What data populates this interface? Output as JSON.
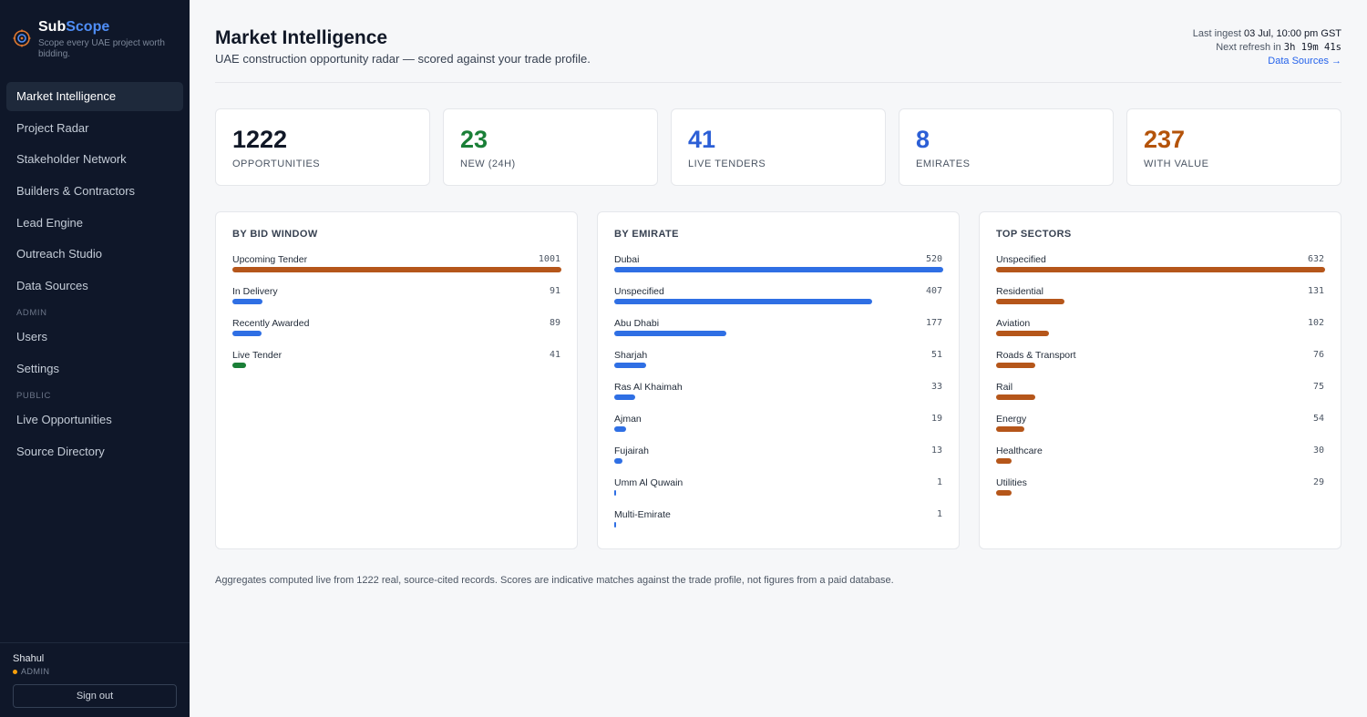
{
  "brand": {
    "name_prefix": "Sub",
    "name_suffix": "Scope",
    "tagline": "Scope every UAE project worth bidding."
  },
  "nav": {
    "main": [
      {
        "label": "Market Intelligence",
        "active": true
      },
      {
        "label": "Project Radar"
      },
      {
        "label": "Stakeholder Network"
      },
      {
        "label": "Builders & Contractors"
      },
      {
        "label": "Lead Engine"
      },
      {
        "label": "Outreach Studio"
      },
      {
        "label": "Data Sources"
      }
    ],
    "admin_heading": "ADMIN",
    "admin": [
      {
        "label": "Users"
      },
      {
        "label": "Settings"
      }
    ],
    "public_heading": "PUBLIC",
    "public": [
      {
        "label": "Live Opportunities"
      },
      {
        "label": "Source Directory"
      }
    ]
  },
  "user": {
    "name": "Shahul",
    "role": "ADMIN",
    "signout_label": "Sign out"
  },
  "header": {
    "title": "Market Intelligence",
    "subtitle": "UAE construction opportunity radar — scored against your trade profile.",
    "last_ingest_label": "Last ingest",
    "last_ingest_value": "03 Jul, 10:00 pm GST",
    "next_refresh_label": "Next refresh in",
    "next_refresh_value": "3h 19m 41s",
    "data_sources_link": "Data Sources →"
  },
  "stats": [
    {
      "value": "1222",
      "label": "OPPORTUNITIES",
      "color": "#111827"
    },
    {
      "value": "23",
      "label": "NEW (24H)",
      "color": "#1a7f37"
    },
    {
      "value": "41",
      "label": "LIVE TENDERS",
      "color": "#2c5fd6"
    },
    {
      "value": "8",
      "label": "EMIRATES",
      "color": "#2c5fd6"
    },
    {
      "value": "237",
      "label": "WITH VALUE",
      "color": "#b45309"
    }
  ],
  "panels": [
    {
      "title": "BY BID WINDOW",
      "max": 1001,
      "rows": [
        {
          "label": "Upcoming Tender",
          "count": 1001,
          "color": "#b5561a"
        },
        {
          "label": "In Delivery",
          "count": 91,
          "color": "#2f6fe4"
        },
        {
          "label": "Recently Awarded",
          "count": 89,
          "color": "#2f6fe4"
        },
        {
          "label": "Live Tender",
          "count": 41,
          "color": "#1a7f37"
        }
      ]
    },
    {
      "title": "BY EMIRATE",
      "max": 520,
      "rows": [
        {
          "label": "Dubai",
          "count": 520,
          "color": "#2f6fe4"
        },
        {
          "label": "Unspecified",
          "count": 407,
          "color": "#2f6fe4"
        },
        {
          "label": "Abu Dhabi",
          "count": 177,
          "color": "#2f6fe4"
        },
        {
          "label": "Sharjah",
          "count": 51,
          "color": "#2f6fe4"
        },
        {
          "label": "Ras Al Khaimah",
          "count": 33,
          "color": "#2f6fe4"
        },
        {
          "label": "Ajman",
          "count": 19,
          "color": "#2f6fe4"
        },
        {
          "label": "Fujairah",
          "count": 13,
          "color": "#2f6fe4"
        },
        {
          "label": "Umm Al Quwain",
          "count": 1,
          "color": "#2f6fe4"
        },
        {
          "label": "Multi-Emirate",
          "count": 1,
          "color": "#2f6fe4"
        }
      ]
    },
    {
      "title": "TOP SECTORS",
      "max": 632,
      "rows": [
        {
          "label": "Unspecified",
          "count": 632,
          "color": "#b5561a"
        },
        {
          "label": "Residential",
          "count": 131,
          "color": "#b5561a"
        },
        {
          "label": "Aviation",
          "count": 102,
          "color": "#b5561a"
        },
        {
          "label": "Roads & Transport",
          "count": 76,
          "color": "#b5561a"
        },
        {
          "label": "Rail",
          "count": 75,
          "color": "#b5561a"
        },
        {
          "label": "Energy",
          "count": 54,
          "color": "#b5561a"
        },
        {
          "label": "Healthcare",
          "count": 30,
          "color": "#b5561a"
        },
        {
          "label": "Utilities",
          "count": 29,
          "color": "#b5561a"
        }
      ]
    }
  ],
  "footnote": "Aggregates computed live from 1222 real, source-cited records. Scores are indicative matches against the trade profile, not figures from a paid database."
}
